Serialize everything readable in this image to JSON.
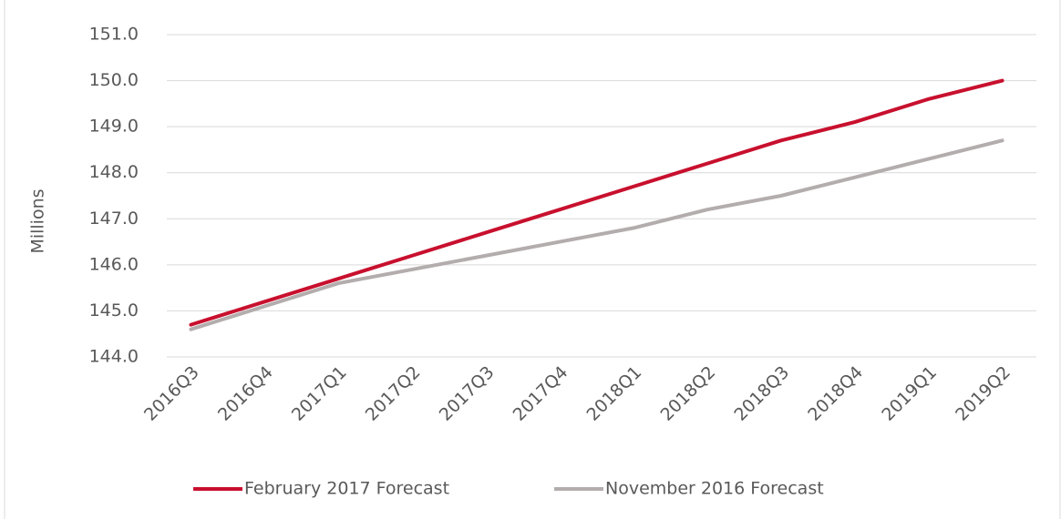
{
  "chart_data": {
    "type": "line",
    "y_label": "Millions",
    "categories": [
      "2016Q3",
      "2016Q4",
      "2017Q1",
      "2017Q2",
      "2017Q3",
      "2017Q4",
      "2018Q1",
      "2018Q2",
      "2018Q3",
      "2018Q4",
      "2019Q1",
      "2019Q2"
    ],
    "series": [
      {
        "name": "February 2017 Forecast",
        "color": "#c8102e",
        "values": [
          144.7,
          145.2,
          145.7,
          146.2,
          146.7,
          147.2,
          147.7,
          148.2,
          148.7,
          149.1,
          149.6,
          150.0
        ]
      },
      {
        "name": "November 2016 Forecast",
        "color": "#b3adad",
        "values": [
          144.6,
          145.1,
          145.6,
          145.9,
          146.2,
          146.5,
          146.8,
          147.2,
          147.5,
          147.9,
          148.3,
          148.7
        ]
      }
    ],
    "ylim": [
      144,
      151
    ],
    "yticks": [
      {
        "value": 144,
        "label": "144.0"
      },
      {
        "value": 145,
        "label": "145.0"
      },
      {
        "value": 146,
        "label": "146.0"
      },
      {
        "value": 147,
        "label": "147.0"
      },
      {
        "value": 148,
        "label": "148.0"
      },
      {
        "value": 149,
        "label": "149.0"
      },
      {
        "value": 150,
        "label": "150.0"
      },
      {
        "value": 151,
        "label": "151.0"
      }
    ],
    "grid": true,
    "legend": "bottom"
  }
}
